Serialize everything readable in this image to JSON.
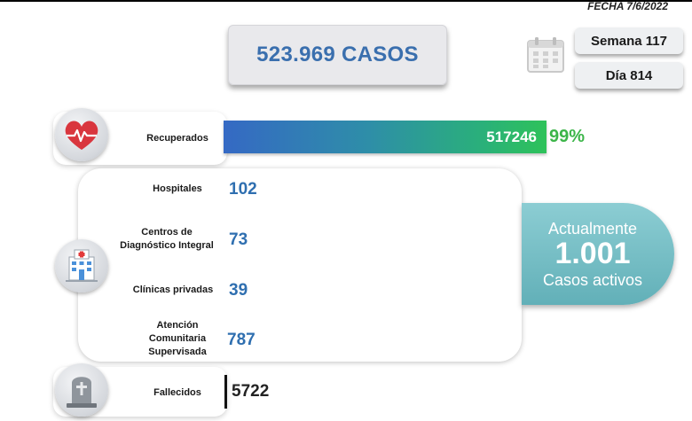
{
  "header": {
    "fecha": "FECHA 7/6/2022",
    "total_casos": "523.969 CASOS",
    "semana": "Semana 117",
    "dia": "Día 814"
  },
  "recuperados": {
    "label": "Recuperados",
    "value": "517246",
    "percent": "99%"
  },
  "hospitalizacion": {
    "hospitales": {
      "label": "Hospitales",
      "value": "102"
    },
    "cdi": {
      "label_line1": "Centros de",
      "label_line2": "Diagnóstico Integral",
      "value": "73"
    },
    "clinicas": {
      "label": "Clínicas privadas",
      "value": "39"
    },
    "acs": {
      "label_line1": "Atención",
      "label_line2": "Comunitaria",
      "label_line3": "Supervisada",
      "value": "787"
    }
  },
  "activos": {
    "line1": "Actualmente",
    "value": "1.001",
    "line3": "Casos activos"
  },
  "fallecidos": {
    "label": "Fallecidos",
    "value": "5722"
  },
  "colors": {
    "blue_text": "#2f6fb0",
    "green_text": "#3cb549",
    "teal_panel": "#62b0b8"
  },
  "icons": [
    "calendar-icon",
    "heart-pulse-icon",
    "hospital-icon",
    "tombstone-icon"
  ]
}
